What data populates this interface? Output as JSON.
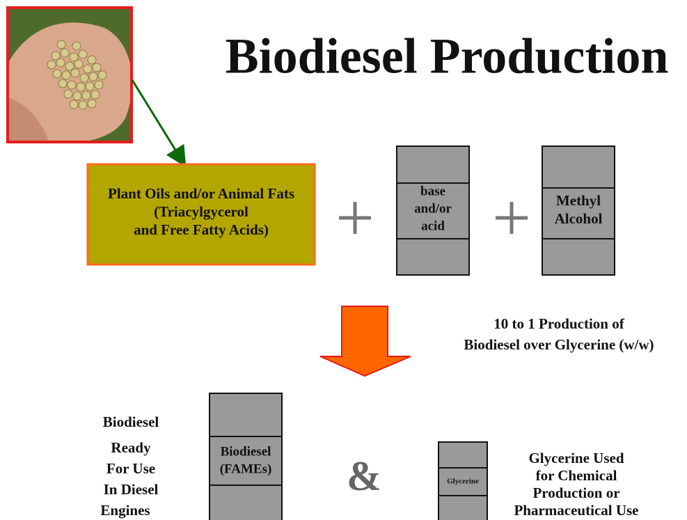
{
  "title": "Biodiesel Production",
  "feedstock": {
    "lines": [
      "Plant Oils and/or Animal Fats",
      "(Triacylgycerol",
      "and Free Fatty Acids)"
    ]
  },
  "catalyst": {
    "lines": [
      "base",
      "and/or",
      "acid"
    ]
  },
  "alcohol": {
    "lines": [
      "Methyl",
      "Alcohol"
    ]
  },
  "ratio_note": {
    "lines": [
      "10 to 1 Production of",
      "Biodiesel over Glycerine (w/w)"
    ]
  },
  "biodiesel_use": {
    "lines": [
      "Biodiesel",
      "Ready",
      "For  Use",
      "In  Diesel",
      "Engines"
    ]
  },
  "biodiesel_product": {
    "lines": [
      "Biodiesel",
      "(FAMEs)"
    ]
  },
  "ampersand": "&",
  "glycerine_product": {
    "label": "Glycerine"
  },
  "glycerine_use": {
    "lines": [
      "Glycerine  Used",
      "for Chemical",
      "Production or",
      "Pharmaceutical Use"
    ]
  }
}
